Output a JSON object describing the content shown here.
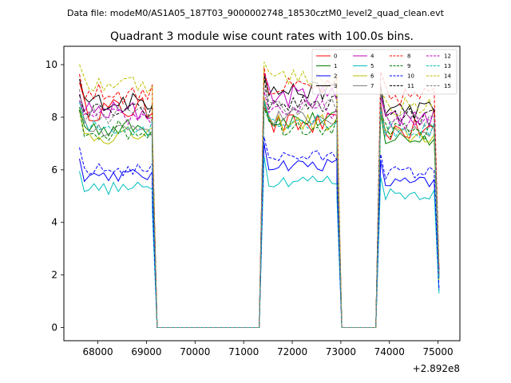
{
  "header_text": "Data file: modeM0/AS1A05_187T03_9000002748_18530cztM0_level2_quad_clean.evt",
  "chart_data": {
    "type": "line",
    "title": "Quadrant 3 module wise count rates with 100.0s bins.",
    "xlabel": "",
    "ylabel": "",
    "x_offset_text": "+2.892e8",
    "x_offset": 289200000,
    "xlim": [
      67300,
      75450
    ],
    "ylim": [
      -0.5,
      10.7
    ],
    "xticks": [
      68000,
      69000,
      70000,
      71000,
      72000,
      73000,
      74000,
      75000
    ],
    "xtick_labels": [
      "68000",
      "69000",
      "70000",
      "71000",
      "72000",
      "73000",
      "74000",
      "75000"
    ],
    "yticks": [
      0,
      2,
      4,
      6,
      8,
      10
    ],
    "ytick_labels": [
      "0",
      "2",
      "4",
      "6",
      "8",
      "10"
    ],
    "grid": false,
    "legend_position": "top-right",
    "segments": [
      {
        "start": 67620,
        "end": 69120
      },
      {
        "start": 71420,
        "end": 72920
      },
      {
        "start": 73820,
        "end": 75020
      }
    ],
    "gaps": [
      {
        "from": 69120,
        "to": 69220,
        "zero_start": 69220,
        "zero_end": 71320,
        "back": 71420
      },
      {
        "from": 72920,
        "to": 73020,
        "zero_start": 73020,
        "zero_end": 73720,
        "back": 73820
      }
    ],
    "series": [
      {
        "name": "0",
        "color": "#ff0000",
        "dash": "solid",
        "levels": [
          8.3,
          7.7,
          7.5
        ],
        "noise": 0.45,
        "end_value": 2.0
      },
      {
        "name": "1",
        "color": "#008000",
        "dash": "solid",
        "levels": [
          7.6,
          7.9,
          7.2
        ],
        "noise": 0.35,
        "end_value": 2.0
      },
      {
        "name": "2",
        "color": "#0000ff",
        "dash": "solid",
        "levels": [
          5.8,
          6.2,
          5.5
        ],
        "noise": 0.25,
        "end_value": 1.4
      },
      {
        "name": "3",
        "color": "#000000",
        "dash": "solid",
        "levels": [
          8.6,
          9.0,
          8.3
        ],
        "noise": 0.35,
        "end_value": 2.2
      },
      {
        "name": "4",
        "color": "#bf00bf",
        "dash": "solid",
        "levels": [
          8.2,
          8.8,
          8.0
        ],
        "noise": 0.45,
        "end_value": 2.2
      },
      {
        "name": "5",
        "color": "#00bfbf",
        "dash": "solid",
        "levels": [
          5.3,
          5.6,
          5.1
        ],
        "noise": 0.25,
        "end_value": 1.3
      },
      {
        "name": "6",
        "color": "#bfbf00",
        "dash": "solid",
        "levels": [
          7.3,
          7.8,
          7.3
        ],
        "noise": 0.35,
        "end_value": 1.8
      },
      {
        "name": "7",
        "color": "#808080",
        "dash": "solid",
        "levels": [
          7.6,
          8.0,
          7.6
        ],
        "noise": 0.35,
        "end_value": 1.9
      },
      {
        "name": "8",
        "color": "#ff0000",
        "dash": "dashed",
        "levels": [
          8.9,
          9.1,
          8.8
        ],
        "noise": 0.4,
        "end_value": 2.3
      },
      {
        "name": "9",
        "color": "#008000",
        "dash": "dashed",
        "levels": [
          7.5,
          7.7,
          7.4
        ],
        "noise": 0.4,
        "end_value": 1.9
      },
      {
        "name": "10",
        "color": "#0000ff",
        "dash": "dashed",
        "levels": [
          6.0,
          6.5,
          5.9
        ],
        "noise": 0.25,
        "end_value": 1.5
      },
      {
        "name": "11",
        "color": "#000000",
        "dash": "dashed",
        "levels": [
          8.2,
          8.5,
          8.0
        ],
        "noise": 0.35,
        "end_value": 2.1
      },
      {
        "name": "12",
        "color": "#bf00bf",
        "dash": "dashed",
        "levels": [
          8.0,
          8.3,
          7.9
        ],
        "noise": 0.35,
        "end_value": 2.0
      },
      {
        "name": "13",
        "color": "#00bfbf",
        "dash": "dashed",
        "levels": [
          7.6,
          7.9,
          7.5
        ],
        "noise": 0.35,
        "end_value": 1.9
      },
      {
        "name": "14",
        "color": "#bfbf00",
        "dash": "dashed",
        "levels": [
          9.3,
          9.5,
          8.4
        ],
        "noise": 0.4,
        "end_value": 2.4
      },
      {
        "name": "15",
        "color": "#808080",
        "dash": "dashed",
        "levels": [
          8.1,
          8.4,
          8.0
        ],
        "noise": 0.35,
        "end_value": 2.0
      }
    ]
  }
}
